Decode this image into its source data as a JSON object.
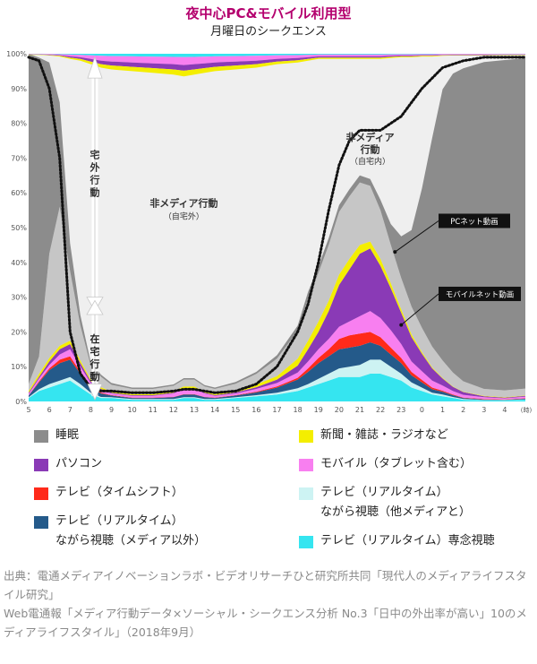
{
  "title": "夜中心PC&モバイル利用型",
  "subtitle": "月曜日のシークエンス",
  "chart_data": {
    "type": "area",
    "stacked": true,
    "x_ticks": [
      "5",
      "6",
      "7",
      "8",
      "9",
      "10",
      "11",
      "12",
      "13",
      "14",
      "15",
      "16",
      "17",
      "18",
      "19",
      "20",
      "21",
      "22",
      "23",
      "0",
      "1",
      "2",
      "3",
      "4"
    ],
    "x_unit": "(時)",
    "y_ticks": [
      "0%",
      "10%",
      "20%",
      "30%",
      "40%",
      "50%",
      "60%",
      "70%",
      "80%",
      "90%",
      "100%"
    ],
    "ylim": [
      0,
      100
    ],
    "x": [
      5,
      5.5,
      6,
      6.5,
      7,
      7.5,
      8,
      8.5,
      9,
      10,
      11,
      12,
      12.5,
      13,
      13.5,
      14,
      15,
      16,
      17,
      18,
      18.5,
      19,
      19.5,
      20,
      20.5,
      21,
      21.5,
      22,
      22.5,
      23,
      23.5,
      24,
      24.5,
      25,
      25.5,
      26,
      27,
      28,
      29
    ],
    "series": [
      {
        "key": "tv_focus",
        "color": "#35e5f0",
        "values": [
          1,
          3,
          4,
          5,
          6,
          4,
          2,
          1,
          1,
          0.5,
          0.5,
          0.5,
          1,
          1,
          0.5,
          0.5,
          1,
          1.5,
          2,
          3,
          4,
          5,
          6,
          7,
          7,
          7,
          8,
          8,
          7,
          6,
          4,
          3,
          2,
          1.5,
          1,
          0.5,
          0.3,
          0.3,
          0.5
        ]
      },
      {
        "key": "tv_parallel_other",
        "color": "#cdf3f3",
        "values": [
          0.2,
          0.5,
          1,
          1,
          1,
          1,
          0.5,
          0.3,
          0.2,
          0.2,
          0.2,
          0.2,
          0.2,
          0.2,
          0.2,
          0.2,
          0.2,
          0.3,
          0.5,
          0.8,
          1,
          1.5,
          2,
          2.5,
          3,
          3.5,
          4,
          4,
          3,
          2,
          1.5,
          1,
          0.5,
          0.5,
          0.3,
          0.2,
          0.1,
          0.1,
          0.1
        ]
      },
      {
        "key": "tv_parallel",
        "color": "#245a8a",
        "values": [
          0.5,
          2,
          4,
          5,
          5,
          3,
          1.5,
          1,
          0.5,
          0.3,
          0.3,
          0.5,
          0.8,
          0.8,
          0.5,
          0.3,
          0.5,
          0.8,
          1.5,
          2.5,
          3.5,
          4.5,
          5,
          5.5,
          5.5,
          5.5,
          5,
          4,
          3.5,
          3,
          2,
          1.5,
          1,
          0.8,
          0.5,
          0.3,
          0.2,
          0.1,
          0.2
        ]
      },
      {
        "key": "tv_timeshift",
        "color": "#ff2a1a",
        "values": [
          0,
          0.3,
          0.5,
          1,
          1,
          0.5,
          0.3,
          0.2,
          0.1,
          0.1,
          0.1,
          0.1,
          0.1,
          0.1,
          0.1,
          0.1,
          0.1,
          0.2,
          0.3,
          0.5,
          1,
          1.5,
          2,
          3,
          3.5,
          3.5,
          3,
          2.5,
          2,
          1.5,
          1,
          0.7,
          0.5,
          0.3,
          0.2,
          0.1,
          0.1,
          0.1,
          0.1
        ]
      },
      {
        "key": "mobile",
        "color": "#f87ff0",
        "values": [
          0.5,
          0.8,
          1,
          1.5,
          2,
          1.5,
          1,
          0.8,
          0.5,
          0.5,
          0.5,
          1,
          1.5,
          1.5,
          1,
          0.5,
          0.5,
          0.8,
          1,
          1.5,
          2,
          2.5,
          3,
          3.5,
          4,
          5,
          6,
          5.5,
          5,
          4,
          3,
          2.5,
          2,
          1.5,
          1,
          0.8,
          0.5,
          0.3,
          0.5
        ]
      },
      {
        "key": "pc",
        "color": "#8a3ab6",
        "values": [
          0.3,
          0.5,
          1,
          1.5,
          1.5,
          1,
          0.5,
          0.3,
          0.2,
          0.2,
          0.2,
          0.2,
          0.2,
          0.2,
          0.2,
          0.2,
          0.3,
          0.5,
          1,
          2,
          3.5,
          5,
          8,
          12,
          15,
          18,
          18,
          15,
          12,
          9,
          7,
          5,
          3.5,
          2,
          1.2,
          0.8,
          0.3,
          0.2,
          0.2
        ]
      },
      {
        "key": "print",
        "color": "#f4ee00",
        "values": [
          0.5,
          0.8,
          1,
          1,
          1,
          0.8,
          0.5,
          0.5,
          0.3,
          0.3,
          0.3,
          0.5,
          0.5,
          0.5,
          0.3,
          0.3,
          0.5,
          0.8,
          1,
          2,
          2.5,
          3,
          3,
          3,
          3,
          2.5,
          2,
          2,
          1.5,
          1,
          0.8,
          0.5,
          0.3,
          0.2,
          0.1,
          0.1,
          0.1,
          0.1,
          0.1
        ]
      },
      {
        "key": "home_nonmedia",
        "color": "#c6c6c6",
        "values": [
          2,
          5,
          30,
          40,
          20,
          10,
          4,
          3,
          2,
          1.5,
          1.5,
          1.5,
          2,
          2,
          1.5,
          1.5,
          2,
          3,
          5,
          8,
          12,
          14,
          16,
          18,
          18,
          18,
          16,
          14,
          11,
          9,
          8,
          7,
          6,
          5,
          4,
          3,
          2,
          2,
          2
        ]
      },
      {
        "key": "sleep",
        "color": "#8c8c8c",
        "values": [
          95,
          86,
          55,
          30,
          8,
          3,
          1,
          0.6,
          0.5,
          0.4,
          0.4,
          0.4,
          0.4,
          0.4,
          0.4,
          0.4,
          0.5,
          0.6,
          1,
          1.5,
          2,
          2,
          2,
          2,
          2,
          2,
          2,
          3,
          6,
          12,
          22,
          40,
          60,
          78,
          86,
          90,
          94,
          95,
          95
        ]
      }
    ],
    "stack_top_base": [
      0.3,
      0.3,
      0.5,
      0.8,
      1.5,
      2,
      3,
      4,
      4.5,
      5,
      5.5,
      6,
      6.5,
      6,
      5.5,
      5,
      4.5,
      4,
      3,
      2.5,
      2,
      1.5,
      1.5,
      1.5,
      1.5,
      1.5,
      1.5,
      1.5,
      1.2,
      1,
      1,
      0.8,
      0.8,
      0.6,
      0.5,
      0.5,
      0.5,
      0.4,
      0.4
    ],
    "stack_top_colors": [
      "#35e5f0",
      "#f87ff0",
      "#8a3ab6",
      "#f4ee00"
    ],
    "at_home_line": [
      99,
      98,
      90,
      70,
      20,
      8,
      4,
      3,
      3,
      2.5,
      2.5,
      3,
      3.5,
      3.5,
      3,
      2.5,
      3,
      5,
      10,
      20,
      28,
      40,
      55,
      68,
      75,
      78,
      78,
      78,
      80,
      82,
      86,
      90,
      93,
      96,
      97,
      98,
      99,
      99,
      99
    ],
    "annotations": {
      "outside": "宅\n外\n行\n動",
      "inside": "在\n宅\n行\n動",
      "nonmedia_outside": "非メディア行動",
      "nonmedia_outside_sub": "（自宅外）",
      "nonmedia_home_1": "非メディア",
      "nonmedia_home_2": "行動",
      "nonmedia_home_sub": "（自宅内）",
      "pc_video": "PCネット動画",
      "mobile_video": "モバイルネット動画"
    }
  },
  "legend": [
    {
      "label": "睡眠",
      "color": "#8c8c8c"
    },
    {
      "label": "新聞・雑誌・ラジオなど",
      "color": "#f4ee00"
    },
    {
      "label": "パソコン",
      "color": "#8a3ab6"
    },
    {
      "label": "モバイル（タブレット含む）",
      "color": "#f87ff0"
    },
    {
      "label": "テレビ（タイムシフト）",
      "color": "#ff2a1a"
    },
    {
      "label": "テレビ（リアルタイム）\nながら視聴（他メディアと）",
      "color": "#cdf3f3"
    },
    {
      "label": "テレビ（リアルタイム）\nながら視聴（メディア以外）",
      "color": "#245a8a"
    },
    {
      "label": "テレビ（リアルタイム）専念視聴",
      "color": "#35e5f0"
    }
  ],
  "source": [
    "出典：電通メディアイノベーションラボ・ビデオリサーチひと研究所共同「現代人のメディアライフスタイル研究」",
    "Web電通報「メディア行動データ×ソーシャル・シークエンス分析 No.3「日中の外出率が高い」10のメディアライフスタイル」（2018年9月）"
  ]
}
